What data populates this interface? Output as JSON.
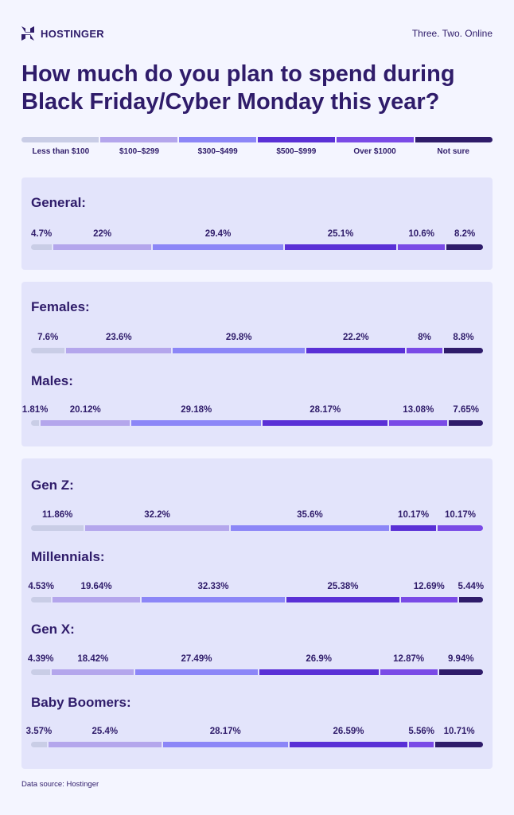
{
  "brand": {
    "name": "HOSTINGER",
    "tagline": "Three. Two. Online"
  },
  "title_line1": "How much do you plan to spend during",
  "title_line2": "Black Friday/Cyber Monday this year?",
  "source": "Data source: Hostinger",
  "colors": [
    "#c9cde6",
    "#b4a6ec",
    "#8c86f7",
    "#5a30d6",
    "#7a4ae6",
    "#2f1c6a"
  ],
  "chart_data": {
    "type": "bar",
    "stacked": "100%",
    "orientation": "horizontal",
    "categories_legend": [
      "Less than $100",
      "$100–$299",
      "$300–$499",
      "$500–$999",
      "Over $1000",
      "Not sure"
    ],
    "groups": [
      {
        "panel": 0,
        "rows": [
          {
            "label": "General:",
            "values": [
              4.7,
              22,
              29.4,
              25.1,
              10.6,
              8.2
            ],
            "labels": [
              "4.7%",
              "22%",
              "29.4%",
              "25.1%",
              "10.6%",
              "8.2%"
            ]
          }
        ]
      },
      {
        "panel": 1,
        "rows": [
          {
            "label": "Females:",
            "values": [
              7.6,
              23.6,
              29.8,
              22.2,
              8,
              8.8
            ],
            "labels": [
              "7.6%",
              "23.6%",
              "29.8%",
              "22.2%",
              "8%",
              "8.8%"
            ]
          },
          {
            "label": "Males:",
            "values": [
              1.81,
              20.12,
              29.18,
              28.17,
              13.08,
              7.65
            ],
            "labels": [
              "1.81%",
              "20.12%",
              "29.18%",
              "28.17%",
              "13.08%",
              "7.65%"
            ]
          }
        ]
      },
      {
        "panel": 2,
        "rows": [
          {
            "label": "Gen Z:",
            "values": [
              11.86,
              32.2,
              35.6,
              10.17,
              10.17,
              0
            ],
            "labels": [
              "11.86%",
              "32.2%",
              "35.6%",
              "10.17%",
              "10.17%",
              ""
            ]
          },
          {
            "label": "Millennials:",
            "values": [
              4.53,
              19.64,
              32.33,
              25.38,
              12.69,
              5.44
            ],
            "labels": [
              "4.53%",
              "19.64%",
              "32.33%",
              "25.38%",
              "12.69%",
              "5.44%"
            ]
          },
          {
            "label": "Gen X:",
            "values": [
              4.39,
              18.42,
              27.49,
              26.9,
              12.87,
              9.94
            ],
            "labels": [
              "4.39%",
              "18.42%",
              "27.49%",
              "26.9%",
              "12.87%",
              "9.94%"
            ]
          },
          {
            "label": "Baby Boomers:",
            "values": [
              3.57,
              25.4,
              28.17,
              26.59,
              5.56,
              10.71
            ],
            "labels": [
              "3.57%",
              "25.4%",
              "28.17%",
              "26.59%",
              "5.56%",
              "10.71%"
            ]
          }
        ]
      }
    ]
  }
}
